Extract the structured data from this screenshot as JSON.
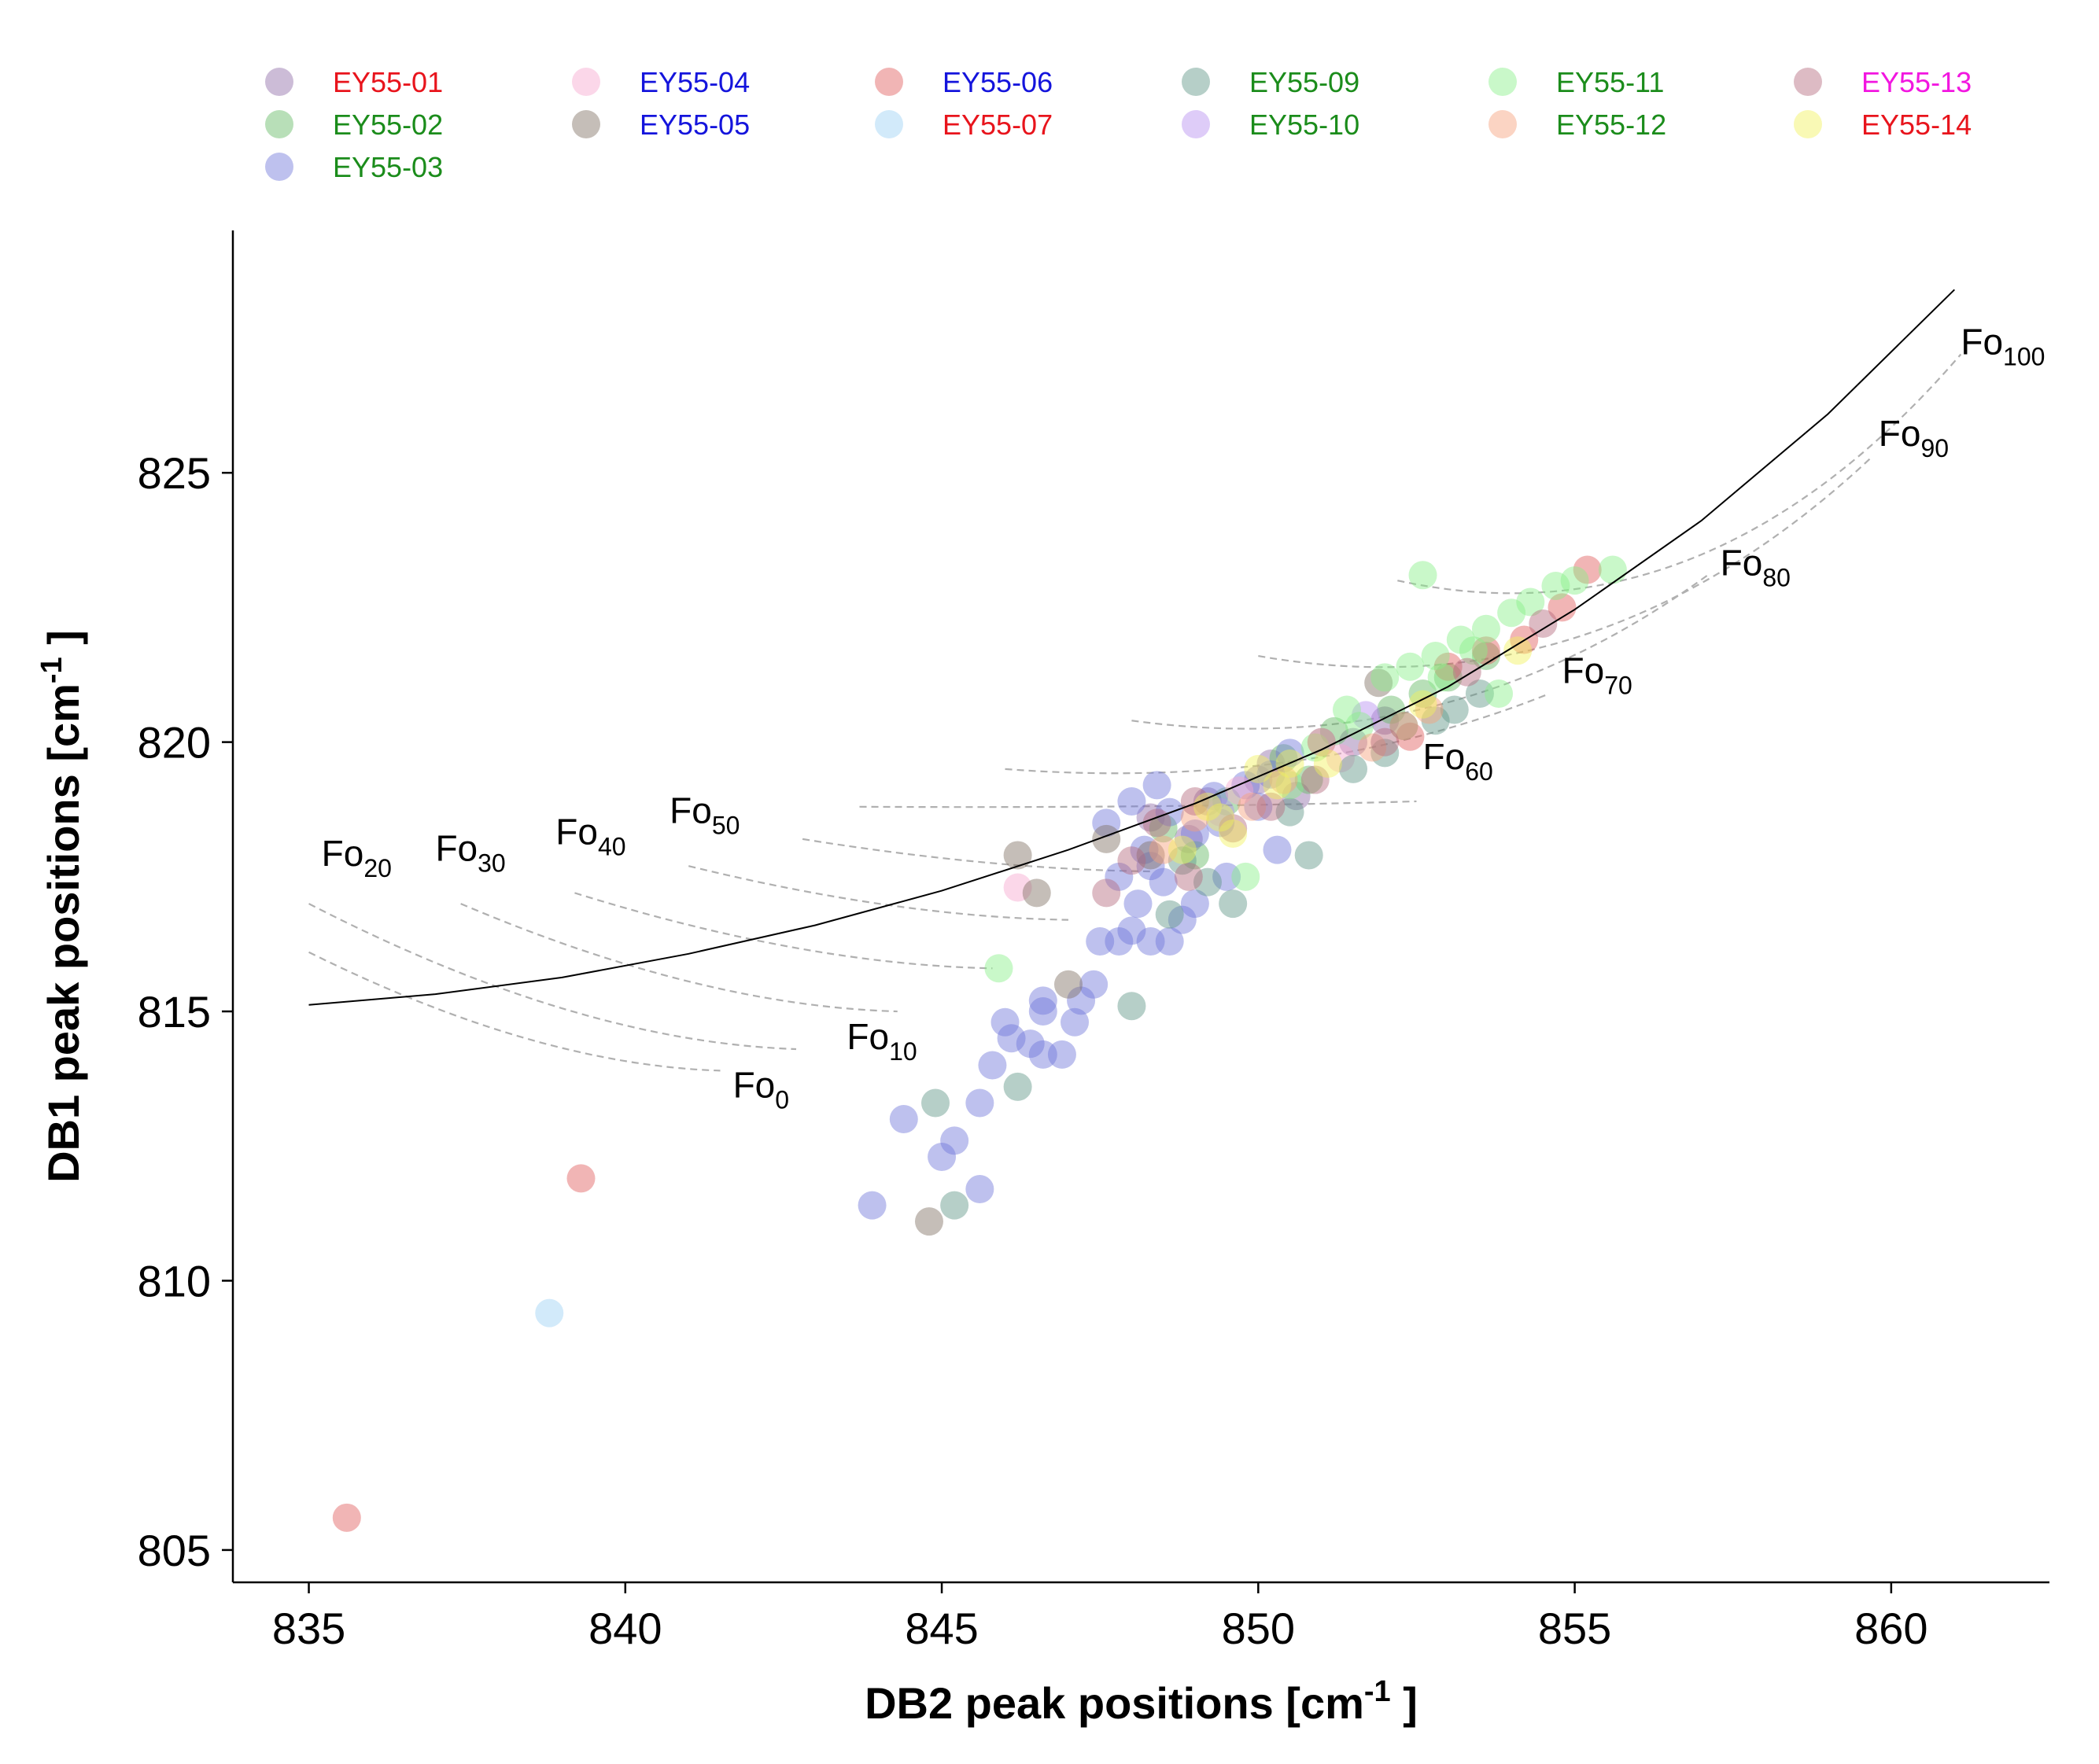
{
  "chart_data": {
    "type": "scatter",
    "xlabel": "DB2 peak positions [cm",
    "ylabel": "DB1 peak positions [cm",
    "unit_superscript": "-1",
    "unit_close": " ]",
    "xlim": [
      833.8,
      862.5
    ],
    "ylim": [
      804.4,
      829.5
    ],
    "xticks": [
      835,
      840,
      845,
      850,
      855,
      860
    ],
    "yticks": [
      805,
      810,
      815,
      820,
      825
    ],
    "grid": false,
    "legend_placement": "top",
    "series": [
      {
        "name": "EY55-01",
        "label_color": "#e8141c",
        "marker_color": "#8e6aa6",
        "points": [
          [
            848.3,
            818.6
          ],
          [
            849.2,
            818.9
          ],
          [
            850.0,
            819.3
          ],
          [
            850.6,
            819.0
          ],
          [
            851.5,
            820.0
          ],
          [
            848.9,
            818.2
          ],
          [
            850.2,
            819.6
          ],
          [
            852.0,
            820.4
          ]
        ]
      },
      {
        "name": "EY55-02",
        "label_color": "#1b8c1b",
        "marker_color": "#61b861",
        "points": [
          [
            848.5,
            818.4
          ],
          [
            849.5,
            818.9
          ],
          [
            850.4,
            819.7
          ],
          [
            851.2,
            820.2
          ],
          [
            852.1,
            820.6
          ],
          [
            853.0,
            821.2
          ],
          [
            849.0,
            817.9
          ],
          [
            850.8,
            819.3
          ],
          [
            852.6,
            820.9
          ],
          [
            853.6,
            821.6
          ]
        ]
      },
      {
        "name": "EY55-03",
        "label_color": "#1b8c1b",
        "marker_color": "#6f76d9",
        "points": [
          [
            843.9,
            811.4
          ],
          [
            845.0,
            812.3
          ],
          [
            845.2,
            812.6
          ],
          [
            844.4,
            813.0
          ],
          [
            845.6,
            811.7
          ],
          [
            845.6,
            813.3
          ],
          [
            845.8,
            814.0
          ],
          [
            846.0,
            814.8
          ],
          [
            846.1,
            814.5
          ],
          [
            846.4,
            814.4
          ],
          [
            846.6,
            814.2
          ],
          [
            846.6,
            815.2
          ],
          [
            846.9,
            814.2
          ],
          [
            847.1,
            814.8
          ],
          [
            847.2,
            815.2
          ],
          [
            847.4,
            815.5
          ],
          [
            846.6,
            815.0
          ],
          [
            847.5,
            816.3
          ],
          [
            847.8,
            816.3
          ],
          [
            848.0,
            816.5
          ],
          [
            848.3,
            816.3
          ],
          [
            848.6,
            816.3
          ],
          [
            848.1,
            817.0
          ],
          [
            848.5,
            817.4
          ],
          [
            847.8,
            817.5
          ],
          [
            848.2,
            818.0
          ],
          [
            847.6,
            818.5
          ],
          [
            848.0,
            818.9
          ],
          [
            848.6,
            818.7
          ],
          [
            849.0,
            818.3
          ],
          [
            849.4,
            818.5
          ],
          [
            849.8,
            819.2
          ],
          [
            850.2,
            819.4
          ],
          [
            850.5,
            819.8
          ],
          [
            851.0,
            820.0
          ],
          [
            848.4,
            819.2
          ],
          [
            849.5,
            817.5
          ],
          [
            850.3,
            818.0
          ],
          [
            849.0,
            817.0
          ],
          [
            848.8,
            816.7
          ],
          [
            848.3,
            817.7
          ],
          [
            849.3,
            819.0
          ],
          [
            850.0,
            818.8
          ]
        ]
      },
      {
        "name": "EY55-04",
        "label_color": "#1414dc",
        "marker_color": "#f7a6cf",
        "points": [
          [
            846.2,
            817.3
          ],
          [
            849.7,
            819.1
          ],
          [
            851.3,
            819.7
          ]
        ]
      },
      {
        "name": "EY55-05",
        "label_color": "#1414dc",
        "marker_color": "#7e6e62",
        "points": [
          [
            844.8,
            811.1
          ],
          [
            846.2,
            817.9
          ],
          [
            846.5,
            817.2
          ],
          [
            847.0,
            815.5
          ],
          [
            847.6,
            818.2
          ],
          [
            848.3,
            817.9
          ],
          [
            851.9,
            821.1
          ]
        ]
      },
      {
        "name": "EY55-06",
        "label_color": "#1414dc",
        "marker_color": "#e15c5c",
        "points": [
          [
            835.6,
            805.6
          ],
          [
            839.3,
            811.9
          ],
          [
            852.4,
            820.1
          ],
          [
            853.6,
            821.7
          ],
          [
            854.8,
            822.5
          ],
          [
            855.2,
            823.2
          ],
          [
            854.2,
            821.9
          ],
          [
            853.0,
            821.4
          ]
        ]
      },
      {
        "name": "EY55-07",
        "label_color": "#e8141c",
        "marker_color": "#9cd0f5",
        "points": [
          [
            838.8,
            809.4
          ]
        ]
      },
      {
        "name": "EY55-09",
        "label_color": "#1b8c1b",
        "marker_color": "#5e9486",
        "points": [
          [
            844.9,
            813.3
          ],
          [
            845.2,
            811.4
          ],
          [
            846.2,
            813.6
          ],
          [
            848.0,
            815.1
          ],
          [
            848.6,
            816.8
          ],
          [
            849.6,
            817.0
          ],
          [
            850.8,
            817.9
          ],
          [
            852.0,
            819.8
          ],
          [
            852.8,
            820.4
          ],
          [
            853.5,
            820.9
          ],
          [
            851.5,
            819.5
          ],
          [
            850.5,
            818.7
          ],
          [
            849.2,
            817.4
          ],
          [
            848.8,
            817.8
          ],
          [
            852.3,
            820.3
          ],
          [
            853.1,
            820.6
          ]
        ]
      },
      {
        "name": "EY55-10",
        "label_color": "#1b8c1b",
        "marker_color": "#b58ef0",
        "points": [
          [
            849.4,
            818.7
          ],
          [
            851.7,
            820.5
          ]
        ]
      },
      {
        "name": "EY55-11",
        "label_color": "#1b8c1b",
        "marker_color": "#88f088",
        "points": [
          [
            845.9,
            815.8
          ],
          [
            849.8,
            817.5
          ],
          [
            850.9,
            819.9
          ],
          [
            851.4,
            820.6
          ],
          [
            852.0,
            821.2
          ],
          [
            852.4,
            821.4
          ],
          [
            852.8,
            821.6
          ],
          [
            853.2,
            821.9
          ],
          [
            853.6,
            822.1
          ],
          [
            854.0,
            822.4
          ],
          [
            854.3,
            822.6
          ],
          [
            854.7,
            822.9
          ],
          [
            855.0,
            823.0
          ],
          [
            855.6,
            823.2
          ],
          [
            852.6,
            823.1
          ],
          [
            853.8,
            820.9
          ],
          [
            851.6,
            820.3
          ],
          [
            850.5,
            819.2
          ],
          [
            852.9,
            821.2
          ],
          [
            853.4,
            821.7
          ]
        ]
      },
      {
        "name": "EY55-12",
        "label_color": "#1b8c1b",
        "marker_color": "#f7a07a",
        "points": [
          [
            848.5,
            818.0
          ],
          [
            849.0,
            818.6
          ],
          [
            849.9,
            818.8
          ],
          [
            850.4,
            819.3
          ],
          [
            851.0,
            820.0
          ],
          [
            851.8,
            819.9
          ],
          [
            852.3,
            820.3
          ],
          [
            852.7,
            820.6
          ]
        ]
      },
      {
        "name": "EY55-13",
        "label_color": "#f216e0",
        "marker_color": "#b4687d",
        "points": [
          [
            847.6,
            817.2
          ],
          [
            848.0,
            817.8
          ],
          [
            848.4,
            818.5
          ],
          [
            849.0,
            818.9
          ],
          [
            849.6,
            818.4
          ],
          [
            850.2,
            818.8
          ],
          [
            850.9,
            819.3
          ],
          [
            852.0,
            820.0
          ],
          [
            853.3,
            821.3
          ],
          [
            854.5,
            822.2
          ],
          [
            848.9,
            817.5
          ]
        ]
      },
      {
        "name": "EY55-14",
        "label_color": "#e8141c",
        "marker_color": "#f2f25a",
        "points": [
          [
            848.8,
            818.0
          ],
          [
            849.4,
            818.6
          ],
          [
            849.6,
            818.3
          ],
          [
            850.3,
            819.2
          ],
          [
            850.0,
            819.5
          ],
          [
            850.5,
            819.6
          ],
          [
            851.1,
            819.6
          ],
          [
            852.6,
            820.7
          ],
          [
            854.1,
            821.7
          ],
          [
            849.2,
            818.8
          ]
        ]
      }
    ],
    "annotations": {
      "fo_main": "Fo",
      "fo_labels": [
        {
          "sub": "0",
          "x": 841.7,
          "y": 813.4
        },
        {
          "sub": "10",
          "x": 843.5,
          "y": 814.3
        },
        {
          "sub": "20",
          "x": 835.2,
          "y": 817.7
        },
        {
          "sub": "30",
          "x": 837.0,
          "y": 817.8
        },
        {
          "sub": "40",
          "x": 838.9,
          "y": 818.1
        },
        {
          "sub": "50",
          "x": 840.7,
          "y": 818.5
        },
        {
          "sub": "60",
          "x": 852.6,
          "y": 819.5
        },
        {
          "sub": "70",
          "x": 854.8,
          "y": 821.1
        },
        {
          "sub": "80",
          "x": 857.3,
          "y": 823.1
        },
        {
          "sub": "90",
          "x": 859.8,
          "y": 825.5
        },
        {
          "sub": "100",
          "x": 861.1,
          "y": 827.2
        }
      ]
    },
    "reference_curve": [
      [
        835.0,
        815.12
      ],
      [
        837.0,
        815.32
      ],
      [
        839.0,
        815.63
      ],
      [
        841.0,
        816.07
      ],
      [
        843.0,
        816.6
      ],
      [
        845.0,
        817.24
      ],
      [
        847.0,
        818.0
      ],
      [
        849.0,
        818.86
      ],
      [
        851.0,
        819.86
      ],
      [
        853.0,
        821.03
      ],
      [
        855.0,
        822.46
      ],
      [
        857.0,
        824.11
      ],
      [
        859.0,
        826.09
      ],
      [
        861.0,
        828.4
      ]
    ],
    "fo_curves": [
      {
        "x0": 835.0,
        "y0": 816.1,
        "x1": 841.5,
        "y1": 813.9
      },
      {
        "x0": 835.0,
        "y0": 817.0,
        "x1": 842.7,
        "y1": 814.3
      },
      {
        "x0": 837.4,
        "y0": 817.0,
        "x1": 844.3,
        "y1": 815.0
      },
      {
        "x0": 839.2,
        "y0": 817.2,
        "x1": 845.8,
        "y1": 815.8
      },
      {
        "x0": 841.0,
        "y0": 817.7,
        "x1": 847.0,
        "y1": 816.7
      },
      {
        "x0": 842.8,
        "y0": 818.2,
        "x1": 848.3,
        "y1": 817.6
      },
      {
        "x0": 843.7,
        "y0": 818.8,
        "x1": 852.5,
        "y1": 818.9
      },
      {
        "x0": 846.0,
        "y0": 819.5,
        "x1": 854.6,
        "y1": 820.9
      },
      {
        "x0": 848.0,
        "y0": 820.4,
        "x1": 857.1,
        "y1": 823.1
      },
      {
        "x0": 850.0,
        "y0": 821.6,
        "x1": 859.7,
        "y1": 825.3
      },
      {
        "x0": 852.2,
        "y0": 823.0,
        "x1": 861.1,
        "y1": 827.2
      }
    ]
  }
}
